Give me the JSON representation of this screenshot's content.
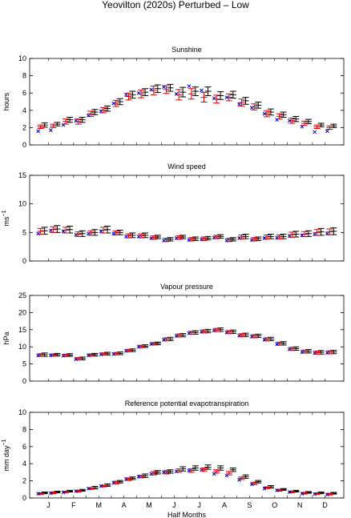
{
  "figure_title": "Yeovilton (2020s) Perturbed – Low",
  "colors": {
    "black": "#000000",
    "red": "#e00000",
    "blue": "#0000cc"
  },
  "chart_data": [
    {
      "type": "errorbar",
      "title": "Sunshine",
      "ylabel": "hours",
      "ylabel_sup": "",
      "ylim": [
        0,
        10
      ],
      "yticks": [
        0,
        2,
        4,
        6,
        8,
        10
      ],
      "x": [
        1,
        2,
        3,
        4,
        5,
        6,
        7,
        8,
        9,
        10,
        11,
        12,
        13,
        14,
        15,
        16,
        17,
        18,
        19,
        20,
        21,
        22,
        23,
        24
      ],
      "xlim": [
        0,
        25
      ],
      "series": [
        {
          "marker": "black-errorbar",
          "values": [
            2.3,
            2.4,
            2.9,
            2.9,
            3.8,
            4.2,
            5.0,
            5.8,
            6.1,
            6.5,
            6.6,
            6.1,
            6.2,
            6.2,
            5.7,
            5.8,
            5.1,
            4.6,
            3.8,
            3.5,
            3.0,
            2.7,
            2.3,
            2.2
          ],
          "err": [
            0.25,
            0.2,
            0.3,
            0.3,
            0.3,
            0.3,
            0.35,
            0.4,
            0.4,
            0.45,
            0.4,
            0.55,
            0.5,
            0.5,
            0.45,
            0.4,
            0.4,
            0.35,
            0.35,
            0.3,
            0.3,
            0.25,
            0.2,
            0.2
          ]
        },
        {
          "marker": "red-errorbar",
          "values": [
            2.1,
            2.2,
            2.7,
            2.7,
            3.6,
            4.0,
            4.8,
            5.6,
            5.9,
            6.3,
            6.4,
            5.8,
            5.9,
            5.5,
            5.3,
            5.5,
            4.9,
            4.4,
            3.6,
            3.3,
            2.8,
            2.5,
            2.1,
            2.0
          ],
          "err": [
            0.2,
            0.2,
            0.3,
            0.3,
            0.3,
            0.3,
            0.35,
            0.4,
            0.45,
            0.5,
            0.45,
            0.6,
            0.6,
            0.55,
            0.45,
            0.4,
            0.4,
            0.35,
            0.35,
            0.3,
            0.3,
            0.25,
            0.2,
            0.2
          ]
        },
        {
          "marker": "blue-cross",
          "values": [
            1.6,
            1.7,
            2.3,
            2.8,
            3.4,
            3.9,
            4.8,
            5.8,
            6.0,
            6.4,
            6.7,
            5.9,
            6.8,
            6.3,
            5.4,
            5.5,
            4.7,
            4.3,
            3.6,
            2.9,
            2.8,
            2.1,
            1.5,
            1.6
          ]
        }
      ]
    },
    {
      "type": "errorbar",
      "title": "Wind speed",
      "ylabel": "ms",
      "ylabel_sup": "−1",
      "ylim": [
        0,
        15
      ],
      "yticks": [
        0,
        5,
        10,
        15
      ],
      "x": [
        1,
        2,
        3,
        4,
        5,
        6,
        7,
        8,
        9,
        10,
        11,
        12,
        13,
        14,
        15,
        16,
        17,
        18,
        19,
        20,
        21,
        22,
        23,
        24
      ],
      "xlim": [
        0,
        25
      ],
      "series": [
        {
          "marker": "black-errorbar",
          "values": [
            5.3,
            5.6,
            5.5,
            4.8,
            5.0,
            5.5,
            5.0,
            4.5,
            4.5,
            4.2,
            3.8,
            4.2,
            3.9,
            4.0,
            4.3,
            3.8,
            4.3,
            3.9,
            4.3,
            4.3,
            4.7,
            4.8,
            5.1,
            5.2
          ],
          "err": [
            0.6,
            0.6,
            0.6,
            0.5,
            0.5,
            0.6,
            0.4,
            0.4,
            0.4,
            0.3,
            0.3,
            0.3,
            0.3,
            0.3,
            0.3,
            0.3,
            0.4,
            0.3,
            0.4,
            0.4,
            0.5,
            0.5,
            0.6,
            0.6
          ]
        },
        {
          "marker": "red-errorbar",
          "values": [
            5.2,
            5.5,
            5.4,
            4.7,
            4.9,
            5.4,
            4.9,
            4.4,
            4.4,
            4.1,
            3.7,
            4.1,
            3.8,
            3.9,
            4.2,
            3.7,
            4.2,
            3.8,
            4.2,
            4.2,
            4.6,
            4.7,
            5.0,
            5.1
          ],
          "err": [
            0.5,
            0.5,
            0.5,
            0.4,
            0.4,
            0.5,
            0.35,
            0.35,
            0.35,
            0.3,
            0.3,
            0.3,
            0.3,
            0.3,
            0.3,
            0.3,
            0.35,
            0.3,
            0.35,
            0.35,
            0.45,
            0.45,
            0.5,
            0.5
          ]
        },
        {
          "marker": "blue-cross",
          "values": [
            4.8,
            5.3,
            5.2,
            4.6,
            4.8,
            5.2,
            4.8,
            4.3,
            4.3,
            4.0,
            3.6,
            4.0,
            3.7,
            3.8,
            4.1,
            3.6,
            4.0,
            3.7,
            4.0,
            4.1,
            4.4,
            4.5,
            4.7,
            4.8
          ]
        }
      ]
    },
    {
      "type": "errorbar",
      "title": "Vapour pressure",
      "ylabel": "hPa",
      "ylabel_sup": "",
      "ylim": [
        0,
        25
      ],
      "yticks": [
        0,
        5,
        10,
        15,
        20,
        25
      ],
      "x": [
        1,
        2,
        3,
        4,
        5,
        6,
        7,
        8,
        9,
        10,
        11,
        12,
        13,
        14,
        15,
        16,
        17,
        18,
        19,
        20,
        21,
        22,
        23,
        24
      ],
      "xlim": [
        0,
        25
      ],
      "series": [
        {
          "marker": "black-errorbar",
          "values": [
            7.7,
            7.7,
            7.6,
            6.6,
            7.7,
            8.0,
            8.1,
            9.0,
            10.2,
            11.0,
            12.3,
            13.4,
            14.2,
            14.6,
            15.0,
            14.4,
            13.5,
            13.2,
            12.3,
            11.0,
            9.5,
            8.7,
            8.4,
            8.5
          ],
          "err": [
            0.5,
            0.4,
            0.4,
            0.4,
            0.4,
            0.4,
            0.4,
            0.4,
            0.4,
            0.4,
            0.5,
            0.5,
            0.5,
            0.5,
            0.5,
            0.5,
            0.5,
            0.5,
            0.5,
            0.5,
            0.5,
            0.5,
            0.5,
            0.5
          ]
        },
        {
          "marker": "red-errorbar",
          "values": [
            7.6,
            7.6,
            7.5,
            6.5,
            7.6,
            7.9,
            8.0,
            8.9,
            10.1,
            10.9,
            12.2,
            13.3,
            14.1,
            14.5,
            14.9,
            14.3,
            13.4,
            13.1,
            12.2,
            10.9,
            9.4,
            8.6,
            8.3,
            8.4
          ],
          "err": [
            0.4,
            0.35,
            0.35,
            0.35,
            0.35,
            0.35,
            0.35,
            0.35,
            0.35,
            0.35,
            0.45,
            0.45,
            0.45,
            0.45,
            0.45,
            0.45,
            0.45,
            0.45,
            0.45,
            0.45,
            0.45,
            0.45,
            0.45,
            0.45
          ]
        },
        {
          "marker": "blue-cross",
          "values": [
            7.5,
            7.5,
            7.4,
            6.4,
            7.5,
            7.8,
            7.9,
            8.8,
            10.0,
            10.8,
            12.1,
            13.2,
            14.0,
            14.4,
            14.8,
            14.2,
            13.3,
            13.0,
            12.1,
            10.8,
            9.3,
            8.5,
            8.2,
            8.3
          ]
        }
      ]
    },
    {
      "type": "errorbar",
      "title": "Reference potential evapotranspiration",
      "ylabel": "mm day",
      "ylabel_sup": "−1",
      "ylim": [
        0,
        10
      ],
      "yticks": [
        0,
        2,
        4,
        6,
        8,
        10
      ],
      "x": [
        1,
        2,
        3,
        4,
        5,
        6,
        7,
        8,
        9,
        10,
        11,
        12,
        13,
        14,
        15,
        16,
        17,
        18,
        19,
        20,
        21,
        22,
        23,
        24
      ],
      "xlim": [
        0,
        25
      ],
      "xticks": [
        1.5,
        3.5,
        5.5,
        7.5,
        9.5,
        11.5,
        13.5,
        15.5,
        17.5,
        19.5,
        21.5,
        23.5
      ],
      "xticklabels": [
        "J",
        "F",
        "M",
        "A",
        "M",
        "J",
        "J",
        "A",
        "S",
        "O",
        "N",
        "D"
      ],
      "xlabel": "Half Months",
      "series": [
        {
          "marker": "black-errorbar",
          "values": [
            0.6,
            0.7,
            0.8,
            0.9,
            1.2,
            1.5,
            1.9,
            2.3,
            2.6,
            3.0,
            3.1,
            3.4,
            3.5,
            3.6,
            3.5,
            3.3,
            2.5,
            1.9,
            1.3,
            1.0,
            0.8,
            0.65,
            0.6,
            0.55
          ],
          "err": [
            0.1,
            0.1,
            0.1,
            0.1,
            0.15,
            0.15,
            0.15,
            0.15,
            0.2,
            0.2,
            0.2,
            0.25,
            0.25,
            0.25,
            0.25,
            0.2,
            0.2,
            0.15,
            0.15,
            0.1,
            0.1,
            0.1,
            0.1,
            0.1
          ]
        },
        {
          "marker": "red-errorbar",
          "values": [
            0.5,
            0.6,
            0.7,
            0.8,
            1.1,
            1.4,
            1.8,
            2.2,
            2.5,
            2.9,
            3.0,
            3.2,
            3.2,
            3.3,
            3.1,
            2.9,
            2.3,
            1.7,
            1.2,
            0.9,
            0.7,
            0.55,
            0.5,
            0.45
          ],
          "err": [
            0.1,
            0.1,
            0.1,
            0.1,
            0.1,
            0.1,
            0.15,
            0.15,
            0.15,
            0.2,
            0.2,
            0.2,
            0.2,
            0.2,
            0.2,
            0.2,
            0.15,
            0.15,
            0.1,
            0.1,
            0.1,
            0.1,
            0.1,
            0.1
          ]
        },
        {
          "marker": "blue-cross",
          "values": [
            0.5,
            0.55,
            0.65,
            0.8,
            1.1,
            1.4,
            1.8,
            2.2,
            2.5,
            2.8,
            3.0,
            3.1,
            3.2,
            3.3,
            2.8,
            2.6,
            2.1,
            1.6,
            1.1,
            0.9,
            0.7,
            0.5,
            0.45,
            0.4
          ]
        }
      ]
    }
  ]
}
